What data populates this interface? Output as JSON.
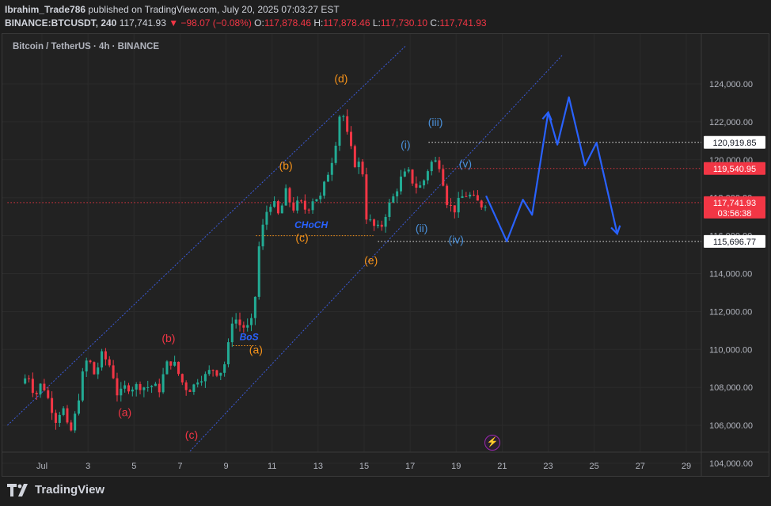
{
  "header": {
    "author": "Ibrahim_Trade786",
    "published": "published on TradingView.com, July 20, 2025 07:03:27 EST",
    "symbol": "BINANCE:BTCUSDT, 240",
    "price": "117,741.93",
    "change": "▼ −98.07 (−0.08%)",
    "o_label": "O:",
    "o": "117,878.46",
    "h_label": "H:",
    "h": "117,878.46",
    "l_label": "L:",
    "l": "117,730.10",
    "c_label": "C:",
    "c": "117,741.93"
  },
  "legend": "Bitcoin / TetherUS · 4h · BINANCE",
  "footer": {
    "brand": "TradingView"
  },
  "colors": {
    "up": "#22ab94",
    "down": "#f23645",
    "blue": "#2962ff",
    "orange": "#f7931a",
    "red_label": "#f23645",
    "wave_blue": "#4a90d9",
    "bg": "#222222"
  },
  "chart_data": {
    "type": "candlestick",
    "ylim": [
      103000,
      125500
    ],
    "y_ticks": [
      "104,000.00",
      "106,000.00",
      "108,000.00",
      "110,000.00",
      "112,000.00",
      "114,000.00",
      "116,000.00",
      "118,000.00",
      "120,000.00",
      "122,000.00",
      "124,000.00"
    ],
    "y_tick_values": [
      104000,
      106000,
      108000,
      110000,
      112000,
      114000,
      116000,
      118000,
      120000,
      122000,
      124000
    ],
    "x_ticks": [
      "Jul",
      "3",
      "5",
      "7",
      "9",
      "11",
      "13",
      "15",
      "17",
      "19",
      "21",
      "23",
      "25",
      "27",
      "29"
    ],
    "x_tick_days": [
      1,
      3,
      5,
      7,
      9,
      11,
      13,
      15,
      17,
      19,
      21,
      23,
      25,
      27,
      29
    ],
    "price_labels": [
      {
        "value": 120919.85,
        "text": "120,919.85",
        "style": "white"
      },
      {
        "value": 119540.95,
        "text": "119,540.95",
        "style": "red"
      },
      {
        "value": 117741.93,
        "text": "117,741.93",
        "style": "red",
        "sub": "03:56:38"
      },
      {
        "value": 115696.77,
        "text": "115,696.77",
        "style": "white"
      }
    ],
    "ohlc_path": [
      [
        0.1,
        108200
      ],
      [
        0.4,
        108700
      ],
      [
        0.7,
        107500
      ],
      [
        1.0,
        108300
      ],
      [
        1.3,
        107300
      ],
      [
        1.6,
        106300
      ],
      [
        1.9,
        107000
      ],
      [
        2.2,
        105400
      ],
      [
        2.5,
        106800
      ],
      [
        2.8,
        108900
      ],
      [
        3.0,
        109600
      ],
      [
        3.3,
        108600
      ],
      [
        3.6,
        109700
      ],
      [
        3.9,
        109300
      ],
      [
        4.1,
        108600
      ],
      [
        4.3,
        107500
      ],
      [
        4.6,
        108000
      ],
      [
        4.9,
        108000
      ],
      [
        5.2,
        108100
      ],
      [
        5.5,
        108000
      ],
      [
        5.8,
        108100
      ],
      [
        6.1,
        107900
      ],
      [
        6.4,
        109200
      ],
      [
        6.7,
        109400
      ],
      [
        6.9,
        108800
      ],
      [
        7.2,
        108000
      ],
      [
        7.5,
        107900
      ],
      [
        7.8,
        108500
      ],
      [
        8.1,
        108600
      ],
      [
        8.4,
        109000
      ],
      [
        8.7,
        108700
      ],
      [
        9.0,
        109400
      ],
      [
        9.3,
        111800
      ],
      [
        9.6,
        111300
      ],
      [
        9.9,
        111100
      ],
      [
        10.2,
        111600
      ],
      [
        10.4,
        115200
      ],
      [
        10.7,
        117100
      ],
      [
        11.0,
        117900
      ],
      [
        11.3,
        117000
      ],
      [
        11.6,
        118300
      ],
      [
        11.9,
        117400
      ],
      [
        12.2,
        117800
      ],
      [
        12.5,
        117300
      ],
      [
        12.8,
        118000
      ],
      [
        13.1,
        118000
      ],
      [
        13.4,
        119200
      ],
      [
        13.7,
        120400
      ],
      [
        14.0,
        122900
      ],
      [
        14.3,
        121100
      ],
      [
        14.6,
        119800
      ],
      [
        14.9,
        119800
      ],
      [
        15.1,
        117000
      ],
      [
        15.4,
        116500
      ],
      [
        15.7,
        116300
      ],
      [
        16.0,
        117400
      ],
      [
        16.3,
        118100
      ],
      [
        16.6,
        119000
      ],
      [
        16.9,
        119400
      ],
      [
        17.2,
        118600
      ],
      [
        17.5,
        118600
      ],
      [
        17.8,
        119600
      ],
      [
        18.0,
        120000
      ],
      [
        18.3,
        119700
      ],
      [
        18.6,
        117800
      ],
      [
        18.9,
        117300
      ],
      [
        19.2,
        118000
      ],
      [
        19.5,
        118200
      ],
      [
        19.8,
        117900
      ],
      [
        20.1,
        117600
      ],
      [
        20.3,
        117742
      ]
    ],
    "projection": [
      [
        20.3,
        118100
      ],
      [
        21.2,
        115700
      ],
      [
        21.9,
        117900
      ],
      [
        22.3,
        117100
      ],
      [
        23.0,
        122500
      ],
      [
        23.4,
        120800
      ],
      [
        23.9,
        123300
      ],
      [
        24.6,
        119700
      ],
      [
        25.1,
        120900
      ],
      [
        26.0,
        116100
      ]
    ],
    "channel_upper": [
      [
        -0.5,
        106000
      ],
      [
        16.8,
        126000
      ]
    ],
    "channel_lower": [
      [
        6.4,
        103300
      ],
      [
        23.6,
        125500
      ]
    ],
    "dotted_levels": [
      {
        "value": 120919.85,
        "from": 17.8,
        "color": "#ffffff"
      },
      {
        "value": 119540.95,
        "from": 18.4,
        "color": "#f23645"
      },
      {
        "value": 117741.93,
        "from": -0.5,
        "color": "#f23645"
      },
      {
        "value": 115696.77,
        "from": 15.6,
        "color": "#ffffff"
      }
    ],
    "short_levels": [
      {
        "value": 116000,
        "from": 10.3,
        "to": 15.4,
        "color": "#f7931a"
      },
      {
        "value": 110200,
        "from": 9.3,
        "to": 10.3,
        "color": "#f7931a"
      }
    ],
    "annotations": [
      {
        "text": "(a)",
        "x": 4.6,
        "y": 106700,
        "color": "#f23645"
      },
      {
        "text": "(b)",
        "x": 6.5,
        "y": 110600,
        "color": "#f23645"
      },
      {
        "text": "(c)",
        "x": 7.5,
        "y": 105500,
        "color": "#f23645"
      },
      {
        "text": "(a)",
        "x": 10.3,
        "y": 110000,
        "color": "#f7931a"
      },
      {
        "text": "(b)",
        "x": 11.6,
        "y": 119700,
        "color": "#f7931a"
      },
      {
        "text": "(c)",
        "x": 12.3,
        "y": 115900,
        "color": "#f7931a"
      },
      {
        "text": "(d)",
        "x": 14.0,
        "y": 124300,
        "color": "#f7931a"
      },
      {
        "text": "(e)",
        "x": 15.3,
        "y": 114700,
        "color": "#f7931a"
      },
      {
        "text": "(i)",
        "x": 16.8,
        "y": 120800,
        "color": "#4a90d9"
      },
      {
        "text": "(ii)",
        "x": 17.5,
        "y": 116400,
        "color": "#4a90d9"
      },
      {
        "text": "(iii)",
        "x": 18.1,
        "y": 122000,
        "color": "#4a90d9"
      },
      {
        "text": "(iv)",
        "x": 19.0,
        "y": 115800,
        "color": "#4a90d9"
      },
      {
        "text": "(v)",
        "x": 19.4,
        "y": 119800,
        "color": "#4a90d9"
      },
      {
        "text": "CHoCH",
        "x": 12.7,
        "y": 116600,
        "color": "#2962ff",
        "italic": true
      },
      {
        "text": "BoS",
        "x": 10.0,
        "y": 110700,
        "color": "#2962ff",
        "italic": true
      }
    ]
  }
}
